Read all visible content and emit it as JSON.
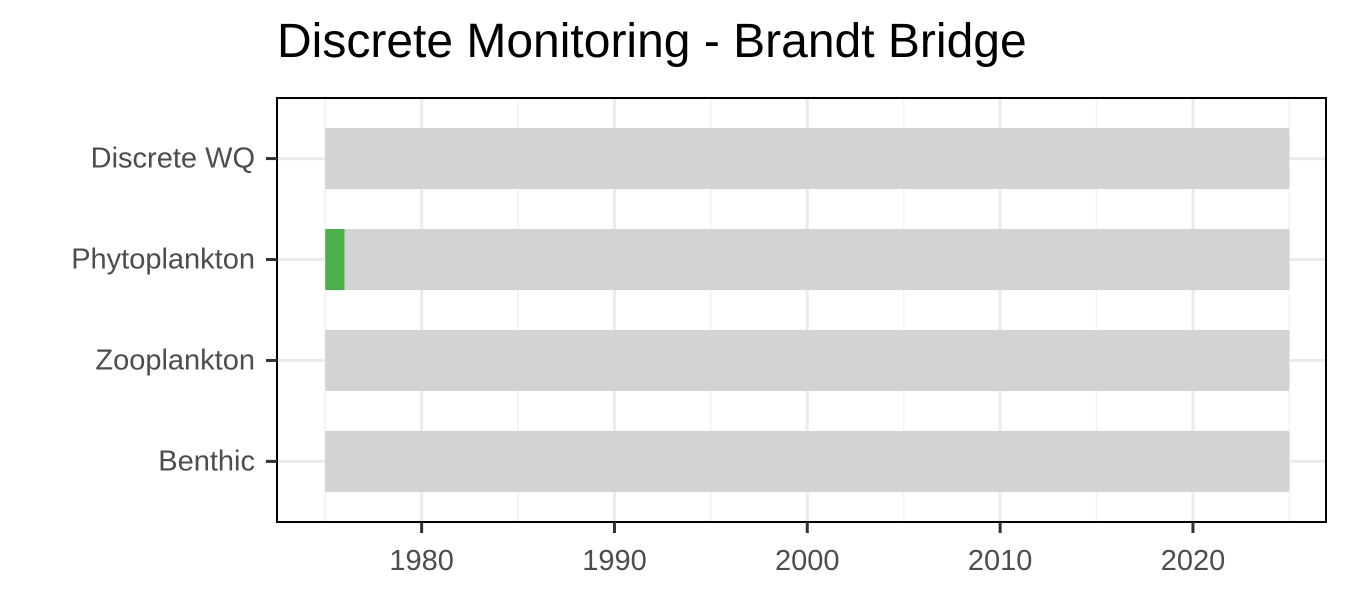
{
  "chart_data": {
    "type": "bar",
    "title": "Discrete Monitoring - Brandt Bridge",
    "xlabel": "",
    "ylabel": "",
    "categories": [
      "Discrete WQ",
      "Phytoplankton",
      "Zooplankton",
      "Benthic"
    ],
    "x_ticks": [
      1980,
      1990,
      2000,
      2010,
      2020
    ],
    "xlim": [
      1972.5,
      2026.9
    ],
    "grid": true,
    "legend": "none",
    "colors": {
      "no_data": "#d3d3d3",
      "data": "#4daf4a"
    },
    "series": [
      {
        "values": [
          [
            {
              "start": 1975,
              "end": 2025,
              "status": "no_data"
            }
          ],
          [
            {
              "start": 1975,
              "end": 1976,
              "status": "data"
            },
            {
              "start": 1976,
              "end": 2025,
              "status": "no_data"
            }
          ],
          [
            {
              "start": 1975,
              "end": 2025,
              "status": "no_data"
            }
          ],
          [
            {
              "start": 1975,
              "end": 2025,
              "status": "no_data"
            }
          ]
        ]
      }
    ]
  }
}
